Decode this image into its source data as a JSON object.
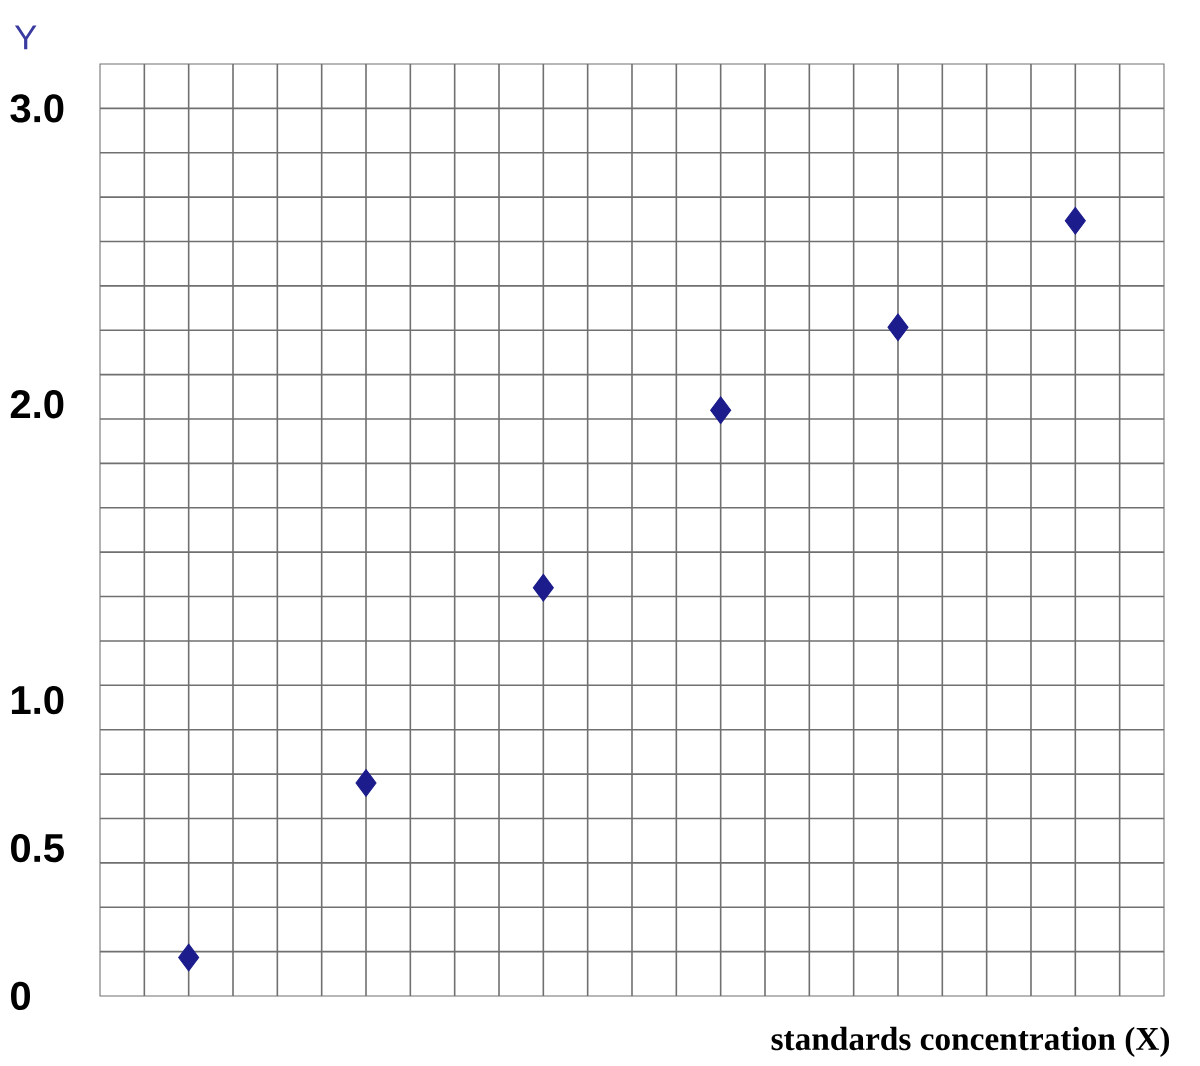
{
  "chart_data": {
    "type": "scatter",
    "xlabel": "standards concentration (X)",
    "ylabel": "Y",
    "categories": [
      null,
      null,
      null,
      null,
      null,
      null
    ],
    "series": [
      {
        "color": "#1c1c8c",
        "values": [
          0.13,
          0.72,
          1.38,
          1.98,
          2.26,
          2.62
        ]
      }
    ],
    "marker": "diamond",
    "grid": true,
    "tick_labels": "y",
    "ylim": [
      0,
      3.15
    ],
    "yticks": [
      {
        "value": 0,
        "label": "0"
      },
      {
        "value": 0.5,
        "label": "0.5"
      },
      {
        "value": 1,
        "label": "1.0"
      },
      {
        "value": 2,
        "label": "2.0"
      },
      {
        "value": 3,
        "label": "3.0"
      },
      {
        "value": 0.15,
        "label": null
      },
      {
        "value": 0.3,
        "label": null
      },
      {
        "value": 0.45,
        "label": null
      },
      {
        "value": 0.6,
        "label": null
      },
      {
        "value": 0.75,
        "label": null
      },
      {
        "value": 0.9,
        "label": null
      },
      {
        "value": 1.05,
        "label": null
      },
      {
        "value": 1.2,
        "label": null
      },
      {
        "value": 1.35,
        "label": null
      },
      {
        "value": 1.5,
        "label": null
      },
      {
        "value": 1.65,
        "label": null
      },
      {
        "value": 1.8,
        "label": null
      },
      {
        "value": 1.95,
        "label": null
      },
      {
        "value": 2.1,
        "label": null
      },
      {
        "value": 2.25,
        "label": null
      },
      {
        "value": 2.4,
        "label": null
      },
      {
        "value": 2.55,
        "label": null
      },
      {
        "value": 2.7,
        "label": null
      },
      {
        "value": 2.85,
        "label": null
      },
      {
        "value": 3.0,
        "label": null
      }
    ]
  }
}
